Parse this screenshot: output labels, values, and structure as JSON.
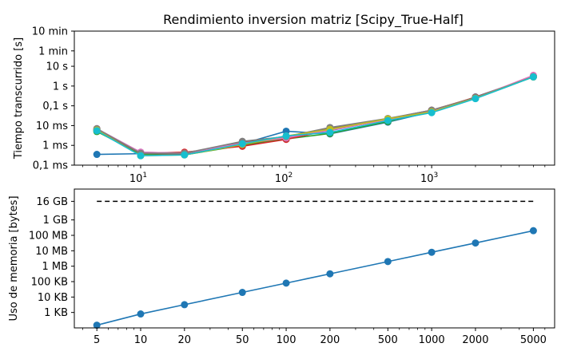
{
  "chart_data": [
    {
      "type": "line",
      "title": "Rendimiento inversion matriz [Scipy_True-Half]",
      "xlabel": "",
      "ylabel": "Tiempo transcurrido [s]",
      "xscale": "log",
      "yscale": "log",
      "xlim": [
        3.5,
        7000
      ],
      "ylim_seconds": [
        0.0001,
        600
      ],
      "x_ticks": [
        {
          "value": 10,
          "label": "10",
          "exp": "1"
        },
        {
          "value": 100,
          "label": "10",
          "exp": "2"
        },
        {
          "value": 1000,
          "label": "10",
          "exp": "3"
        }
      ],
      "y_ticks": [
        {
          "value": 0.0001,
          "label": "0,1 ms"
        },
        {
          "value": 0.001,
          "label": "1 ms"
        },
        {
          "value": 0.01,
          "label": "10 ms"
        },
        {
          "value": 0.1,
          "label": "0,1 s"
        },
        {
          "value": 1,
          "label": "1 s"
        },
        {
          "value": 10,
          "label": "10 s"
        },
        {
          "value": 60,
          "label": "1 min"
        },
        {
          "value": 600,
          "label": "10 min"
        }
      ],
      "grid": false,
      "x": [
        5,
        10,
        20,
        50,
        100,
        200,
        500,
        1000,
        2000,
        5000
      ],
      "series": [
        {
          "color": "#1f77b4",
          "values": [
            0.00035,
            0.00038,
            0.0004,
            0.0012,
            0.0052,
            0.0038,
            0.015,
            0.05,
            0.28,
            3.0
          ]
        },
        {
          "color": "#ff7f0e",
          "values": [
            0.0055,
            0.0004,
            0.00035,
            0.0011,
            0.0022,
            0.0075,
            0.022,
            0.06,
            0.27,
            3.0
          ]
        },
        {
          "color": "#2ca02c",
          "values": [
            0.005,
            0.00036,
            0.00033,
            0.001,
            0.0021,
            0.004,
            0.016,
            0.055,
            0.25,
            2.9
          ]
        },
        {
          "color": "#d62728",
          "values": [
            0.006,
            0.0004,
            0.00045,
            0.0009,
            0.002,
            0.006,
            0.02,
            0.058,
            0.27,
            3.0
          ]
        },
        {
          "color": "#9467bd",
          "values": [
            0.0065,
            0.00045,
            0.0004,
            0.0012,
            0.0025,
            0.0055,
            0.021,
            0.06,
            0.26,
            3.1
          ]
        },
        {
          "color": "#8c564b",
          "values": [
            0.006,
            0.0004,
            0.00035,
            0.0015,
            0.0023,
            0.007,
            0.022,
            0.06,
            0.26,
            3.0
          ]
        },
        {
          "color": "#e377c2",
          "values": [
            0.007,
            0.00045,
            0.0004,
            0.0013,
            0.0024,
            0.006,
            0.02,
            0.055,
            0.25,
            3.5
          ]
        },
        {
          "color": "#7f7f7f",
          "values": [
            0.007,
            0.0004,
            0.0004,
            0.0016,
            0.0028,
            0.008,
            0.023,
            0.06,
            0.26,
            3.0
          ]
        },
        {
          "color": "#bcbd22",
          "values": [
            0.006,
            0.0003,
            0.00033,
            0.0011,
            0.003,
            0.0065,
            0.022,
            0.05,
            0.24,
            2.9
          ]
        },
        {
          "color": "#17becf",
          "values": [
            0.0055,
            0.0003,
            0.00033,
            0.0012,
            0.003,
            0.0045,
            0.018,
            0.045,
            0.23,
            2.9
          ]
        }
      ]
    },
    {
      "type": "line",
      "title": "",
      "xlabel": "",
      "ylabel": "Uso de memoria [bytes]",
      "xscale": "log",
      "yscale": "log",
      "xlim": [
        3.5,
        7000
      ],
      "ylim_bytes": [
        100,
        100000000000
      ],
      "x_ticks": [
        {
          "value": 5,
          "label": "5"
        },
        {
          "value": 10,
          "label": "10"
        },
        {
          "value": 20,
          "label": "20"
        },
        {
          "value": 50,
          "label": "50"
        },
        {
          "value": 100,
          "label": "100"
        },
        {
          "value": 200,
          "label": "200"
        },
        {
          "value": 500,
          "label": "500"
        },
        {
          "value": 1000,
          "label": "1000"
        },
        {
          "value": 2000,
          "label": "2000"
        },
        {
          "value": 5000,
          "label": "5000"
        }
      ],
      "y_ticks": [
        {
          "value": 1000,
          "label": "1 KB"
        },
        {
          "value": 10000,
          "label": "10 KB"
        },
        {
          "value": 100000,
          "label": "100 KB"
        },
        {
          "value": 1000000,
          "label": "1 MB"
        },
        {
          "value": 10000000,
          "label": "10 MB"
        },
        {
          "value": 100000000,
          "label": "100 MB"
        },
        {
          "value": 1000000000,
          "label": "1 GB"
        },
        {
          "value": 16000000000,
          "label": "16 GB"
        }
      ],
      "grid": false,
      "x": [
        5,
        10,
        20,
        50,
        100,
        200,
        500,
        1000,
        2000,
        5000
      ],
      "series": [
        {
          "color": "#1f77b4",
          "values": [
            150,
            800,
            3200,
            20000,
            80000,
            320000,
            2000000,
            8000000,
            32000000,
            200000000
          ]
        }
      ],
      "reference_line": {
        "value": 16000000000,
        "x_range": [
          5,
          5000
        ],
        "style": "dashed",
        "color": "#000000"
      }
    }
  ]
}
